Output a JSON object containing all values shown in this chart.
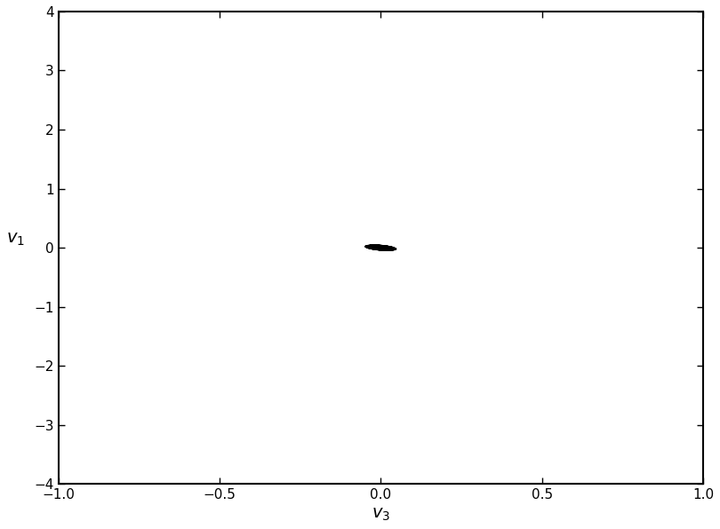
{
  "xlim": [
    -1,
    1
  ],
  "ylim": [
    -4,
    4
  ],
  "xlabel": "$v_3$",
  "ylabel": "$v_1$",
  "xticks": [
    -1,
    -0.5,
    0,
    0.5,
    1
  ],
  "yticks": [
    -4,
    -3,
    -2,
    -1,
    0,
    1,
    2,
    3,
    4
  ],
  "line_color": "black",
  "line_width": 0.3,
  "line_alpha": 1.0,
  "bg_color": "white",
  "figsize": [
    8.1,
    5.96
  ],
  "dpi": 100,
  "xlabel_fontsize": 14,
  "ylabel_fontsize": 14,
  "tick_fontsize": 11
}
